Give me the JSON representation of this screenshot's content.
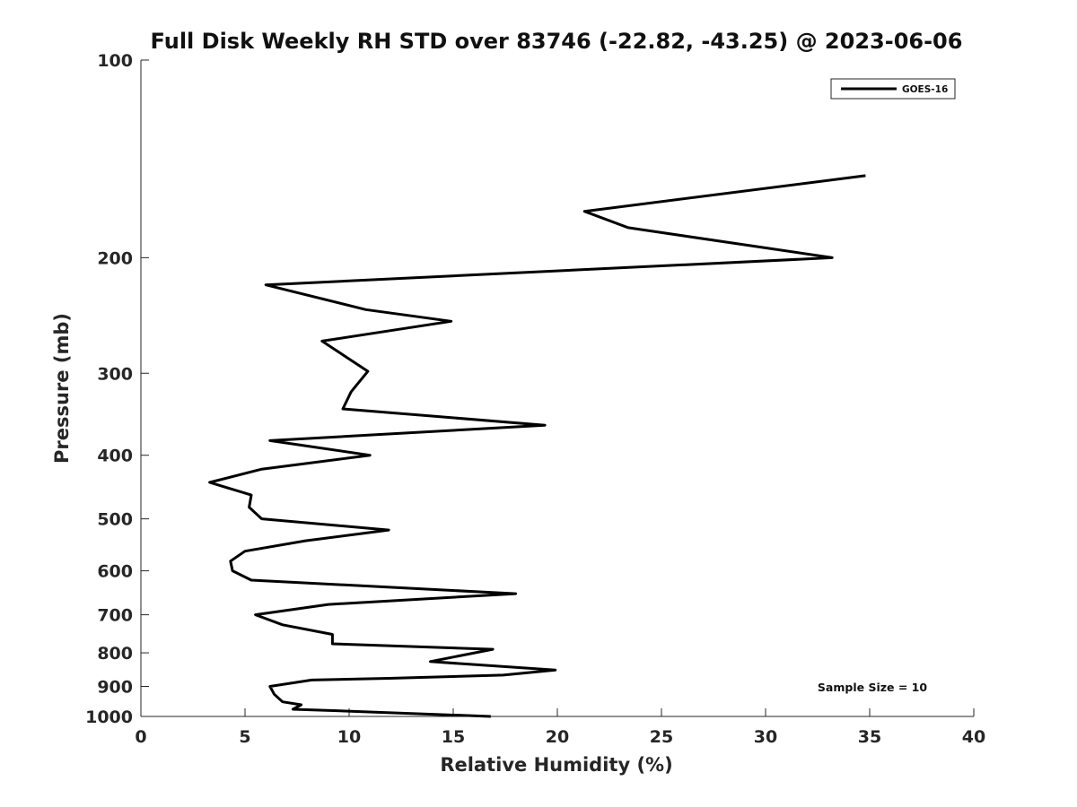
{
  "chart_data": {
    "type": "line",
    "title": "Full Disk Weekly RH STD over 83746 (-22.82, -43.25) @ 2023-06-06",
    "xlabel": "Relative Humidity (%)",
    "ylabel": "Pressure (mb)",
    "xlim": [
      0,
      40
    ],
    "ylim": [
      100,
      1000
    ],
    "y_scale": "log",
    "y_reversed": true,
    "x_ticks": [
      0,
      5,
      10,
      15,
      20,
      25,
      30,
      35,
      40
    ],
    "x_tick_labels": [
      "0",
      "5",
      "10",
      "15",
      "20",
      "25",
      "30",
      "35",
      "40"
    ],
    "y_ticks": [
      100,
      200,
      300,
      400,
      500,
      600,
      700,
      800,
      900,
      1000
    ],
    "y_tick_labels": [
      "100",
      "200",
      "300",
      "400",
      "500",
      "600",
      "700",
      "800",
      "900",
      "1000"
    ],
    "grid": false,
    "legend_position": "top-right",
    "series": [
      {
        "name": "GOES-16",
        "color": "#000000",
        "x": [
          34.8,
          21.3,
          23.4,
          33.2,
          6.0,
          10.8,
          14.9,
          8.7,
          10.9,
          10.1,
          9.7,
          19.4,
          6.2,
          11.0,
          5.8,
          3.3,
          5.3,
          5.2,
          5.8,
          11.9,
          7.9,
          5.0,
          4.3,
          4.4,
          5.3,
          18.0,
          9.0,
          5.5,
          6.8,
          9.2,
          9.2,
          16.9,
          13.9,
          19.9,
          17.4,
          11.9,
          8.2,
          6.2,
          6.4,
          6.8,
          7.7,
          7.3,
          9.4,
          16.8
        ],
        "y": [
          150,
          170,
          180,
          200,
          220,
          240,
          250,
          268,
          298,
          320,
          340,
          360,
          380,
          400,
          420,
          440,
          460,
          480,
          500,
          520,
          540,
          560,
          580,
          600,
          620,
          650,
          675,
          700,
          725,
          750,
          775,
          790,
          825,
          850,
          865,
          875,
          880,
          900,
          925,
          950,
          960,
          975,
          980,
          1000
        ]
      }
    ],
    "annotations": [
      {
        "text": "Sample Size = 10"
      }
    ]
  }
}
